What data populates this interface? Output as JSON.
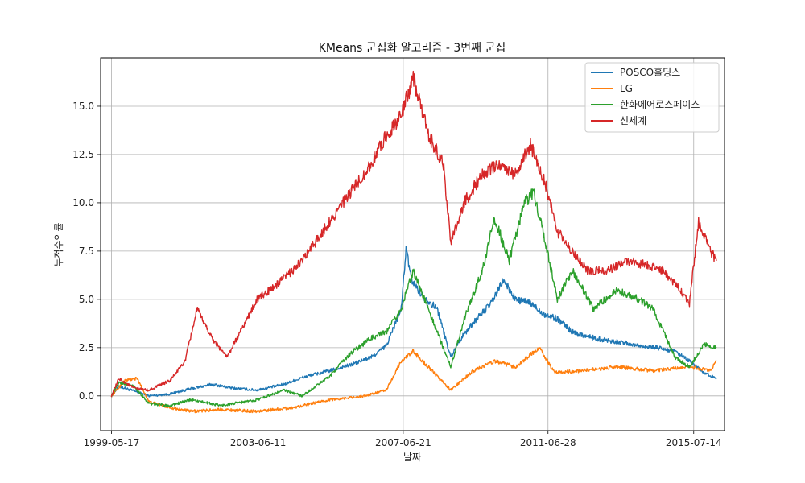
{
  "chart_data": {
    "type": "line",
    "title": "KMeans 군집화 알고리즘 - 3번째 군집",
    "xlabel": "날짜",
    "ylabel": "누적수익률",
    "x_tick_labels": [
      "1999-05-17",
      "2003-06-11",
      "2007-06-21",
      "2011-06-28",
      "2015-07-14"
    ],
    "xlim": [
      "1999-01-27",
      "2016-05-21"
    ],
    "ylim": [
      -1.8,
      17.5
    ],
    "y_ticks": [
      0.0,
      2.5,
      5.0,
      7.5,
      10.0,
      12.5,
      15.0
    ],
    "y_tick_labels": [
      "0.0",
      "2.5",
      "5.0",
      "7.5",
      "10.0",
      "12.5",
      "15.0"
    ],
    "grid": true,
    "legend_position": "top-right",
    "series": [
      {
        "name": "POSCO홀딩스",
        "color": "#1f77b4",
        "points": [
          [
            "1999-05-17",
            0.0
          ],
          [
            "1999-08-01",
            0.5
          ],
          [
            "1999-12-01",
            0.3
          ],
          [
            "2000-06-01",
            0.0
          ],
          [
            "2001-01-01",
            0.1
          ],
          [
            "2001-06-01",
            0.3
          ],
          [
            "2002-03-01",
            0.6
          ],
          [
            "2002-10-01",
            0.4
          ],
          [
            "2003-06-01",
            0.3
          ],
          [
            "2004-03-01",
            0.6
          ],
          [
            "2004-10-01",
            1.0
          ],
          [
            "2005-06-01",
            1.3
          ],
          [
            "2006-01-01",
            1.6
          ],
          [
            "2006-08-01",
            2.0
          ],
          [
            "2007-01-01",
            2.6
          ],
          [
            "2007-06-01",
            4.5
          ],
          [
            "2007-07-20",
            7.6
          ],
          [
            "2007-09-15",
            6.0
          ],
          [
            "2008-01-01",
            5.2
          ],
          [
            "2008-06-01",
            4.5
          ],
          [
            "2008-10-15",
            2.0
          ],
          [
            "2009-01-01",
            2.8
          ],
          [
            "2009-06-01",
            3.8
          ],
          [
            "2009-12-01",
            4.8
          ],
          [
            "2010-04-01",
            6.0
          ],
          [
            "2010-08-01",
            5.0
          ],
          [
            "2011-01-01",
            4.8
          ],
          [
            "2011-06-01",
            4.2
          ],
          [
            "2011-10-01",
            4.0
          ],
          [
            "2012-03-01",
            3.3
          ],
          [
            "2012-10-01",
            3.0
          ],
          [
            "2013-06-01",
            2.8
          ],
          [
            "2014-01-01",
            2.6
          ],
          [
            "2014-07-01",
            2.5
          ],
          [
            "2015-01-01",
            2.3
          ],
          [
            "2015-06-01",
            1.8
          ],
          [
            "2015-11-01",
            1.2
          ],
          [
            "2016-03-01",
            0.9
          ]
        ]
      },
      {
        "name": "LG",
        "color": "#ff7f0e",
        "points": [
          [
            "1999-05-17",
            0.0
          ],
          [
            "1999-10-01",
            0.8
          ],
          [
            "2000-02-01",
            0.9
          ],
          [
            "2000-06-01",
            -0.3
          ],
          [
            "2001-01-01",
            -0.6
          ],
          [
            "2001-08-01",
            -0.8
          ],
          [
            "2002-06-01",
            -0.7
          ],
          [
            "2003-06-01",
            -0.8
          ],
          [
            "2004-06-01",
            -0.6
          ],
          [
            "2005-06-01",
            -0.2
          ],
          [
            "2006-06-01",
            0.0
          ],
          [
            "2007-01-01",
            0.3
          ],
          [
            "2007-06-01",
            1.8
          ],
          [
            "2007-10-01",
            2.3
          ],
          [
            "2008-03-01",
            1.5
          ],
          [
            "2008-10-15",
            0.3
          ],
          [
            "2009-06-01",
            1.3
          ],
          [
            "2010-01-01",
            1.8
          ],
          [
            "2010-08-01",
            1.5
          ],
          [
            "2011-04-01",
            2.5
          ],
          [
            "2011-09-01",
            1.2
          ],
          [
            "2012-06-01",
            1.3
          ],
          [
            "2013-06-01",
            1.5
          ],
          [
            "2014-06-01",
            1.3
          ],
          [
            "2015-06-01",
            1.5
          ],
          [
            "2016-01-01",
            1.3
          ],
          [
            "2016-03-01",
            1.8
          ]
        ]
      },
      {
        "name": "한화에어로스페이스",
        "color": "#2ca02c",
        "points": [
          [
            "1999-05-17",
            0.0
          ],
          [
            "1999-08-01",
            0.7
          ],
          [
            "2000-01-01",
            0.5
          ],
          [
            "2000-06-01",
            -0.4
          ],
          [
            "2001-01-01",
            -0.5
          ],
          [
            "2001-08-01",
            -0.2
          ],
          [
            "2002-06-01",
            -0.5
          ],
          [
            "2003-06-01",
            -0.2
          ],
          [
            "2004-03-01",
            0.3
          ],
          [
            "2004-09-01",
            0.0
          ],
          [
            "2005-06-01",
            1.0
          ],
          [
            "2006-01-01",
            2.2
          ],
          [
            "2006-08-01",
            3.0
          ],
          [
            "2007-01-01",
            3.3
          ],
          [
            "2007-06-01",
            4.5
          ],
          [
            "2007-10-01",
            6.5
          ],
          [
            "2008-03-01",
            4.5
          ],
          [
            "2008-10-15",
            1.5
          ],
          [
            "2009-03-01",
            4.0
          ],
          [
            "2009-09-01",
            6.5
          ],
          [
            "2010-01-01",
            9.2
          ],
          [
            "2010-06-01",
            7.0
          ],
          [
            "2010-11-01",
            10.0
          ],
          [
            "2011-02-01",
            10.5
          ],
          [
            "2011-06-01",
            8.0
          ],
          [
            "2011-10-01",
            5.0
          ],
          [
            "2012-03-01",
            6.5
          ],
          [
            "2012-10-01",
            4.5
          ],
          [
            "2013-06-01",
            5.5
          ],
          [
            "2014-01-01",
            5.0
          ],
          [
            "2014-06-01",
            4.5
          ],
          [
            "2015-01-01",
            2.0
          ],
          [
            "2015-06-01",
            1.5
          ],
          [
            "2015-11-01",
            2.7
          ],
          [
            "2016-03-01",
            2.5
          ]
        ]
      },
      {
        "name": "신세계",
        "color": "#d62728",
        "points": [
          [
            "1999-05-17",
            0.0
          ],
          [
            "1999-08-01",
            0.9
          ],
          [
            "2000-01-01",
            0.4
          ],
          [
            "2000-06-01",
            0.3
          ],
          [
            "2001-01-01",
            0.8
          ],
          [
            "2001-06-01",
            1.8
          ],
          [
            "2001-10-01",
            4.5
          ],
          [
            "2002-03-01",
            3.0
          ],
          [
            "2002-08-01",
            2.0
          ],
          [
            "2003-01-01",
            3.5
          ],
          [
            "2003-06-01",
            5.0
          ],
          [
            "2004-01-01",
            5.8
          ],
          [
            "2004-09-01",
            7.0
          ],
          [
            "2005-06-01",
            9.0
          ],
          [
            "2006-01-01",
            10.5
          ],
          [
            "2006-08-01",
            12.0
          ],
          [
            "2007-01-01",
            13.5
          ],
          [
            "2007-06-01",
            14.5
          ],
          [
            "2007-10-01",
            16.5
          ],
          [
            "2008-03-01",
            13.5
          ],
          [
            "2008-08-01",
            12.0
          ],
          [
            "2008-10-15",
            8.0
          ],
          [
            "2009-03-01",
            10.0
          ],
          [
            "2009-09-01",
            11.5
          ],
          [
            "2010-03-01",
            12.0
          ],
          [
            "2010-08-01",
            11.5
          ],
          [
            "2011-01-01",
            13.0
          ],
          [
            "2011-06-01",
            11.0
          ],
          [
            "2011-10-01",
            8.5
          ],
          [
            "2012-03-01",
            7.5
          ],
          [
            "2012-08-01",
            6.5
          ],
          [
            "2013-03-01",
            6.5
          ],
          [
            "2013-09-01",
            7.0
          ],
          [
            "2014-03-01",
            6.8
          ],
          [
            "2014-09-01",
            6.5
          ],
          [
            "2015-03-01",
            5.5
          ],
          [
            "2015-06-01",
            4.8
          ],
          [
            "2015-09-01",
            9.0
          ],
          [
            "2016-01-01",
            7.5
          ],
          [
            "2016-03-01",
            7.0
          ]
        ]
      }
    ]
  }
}
